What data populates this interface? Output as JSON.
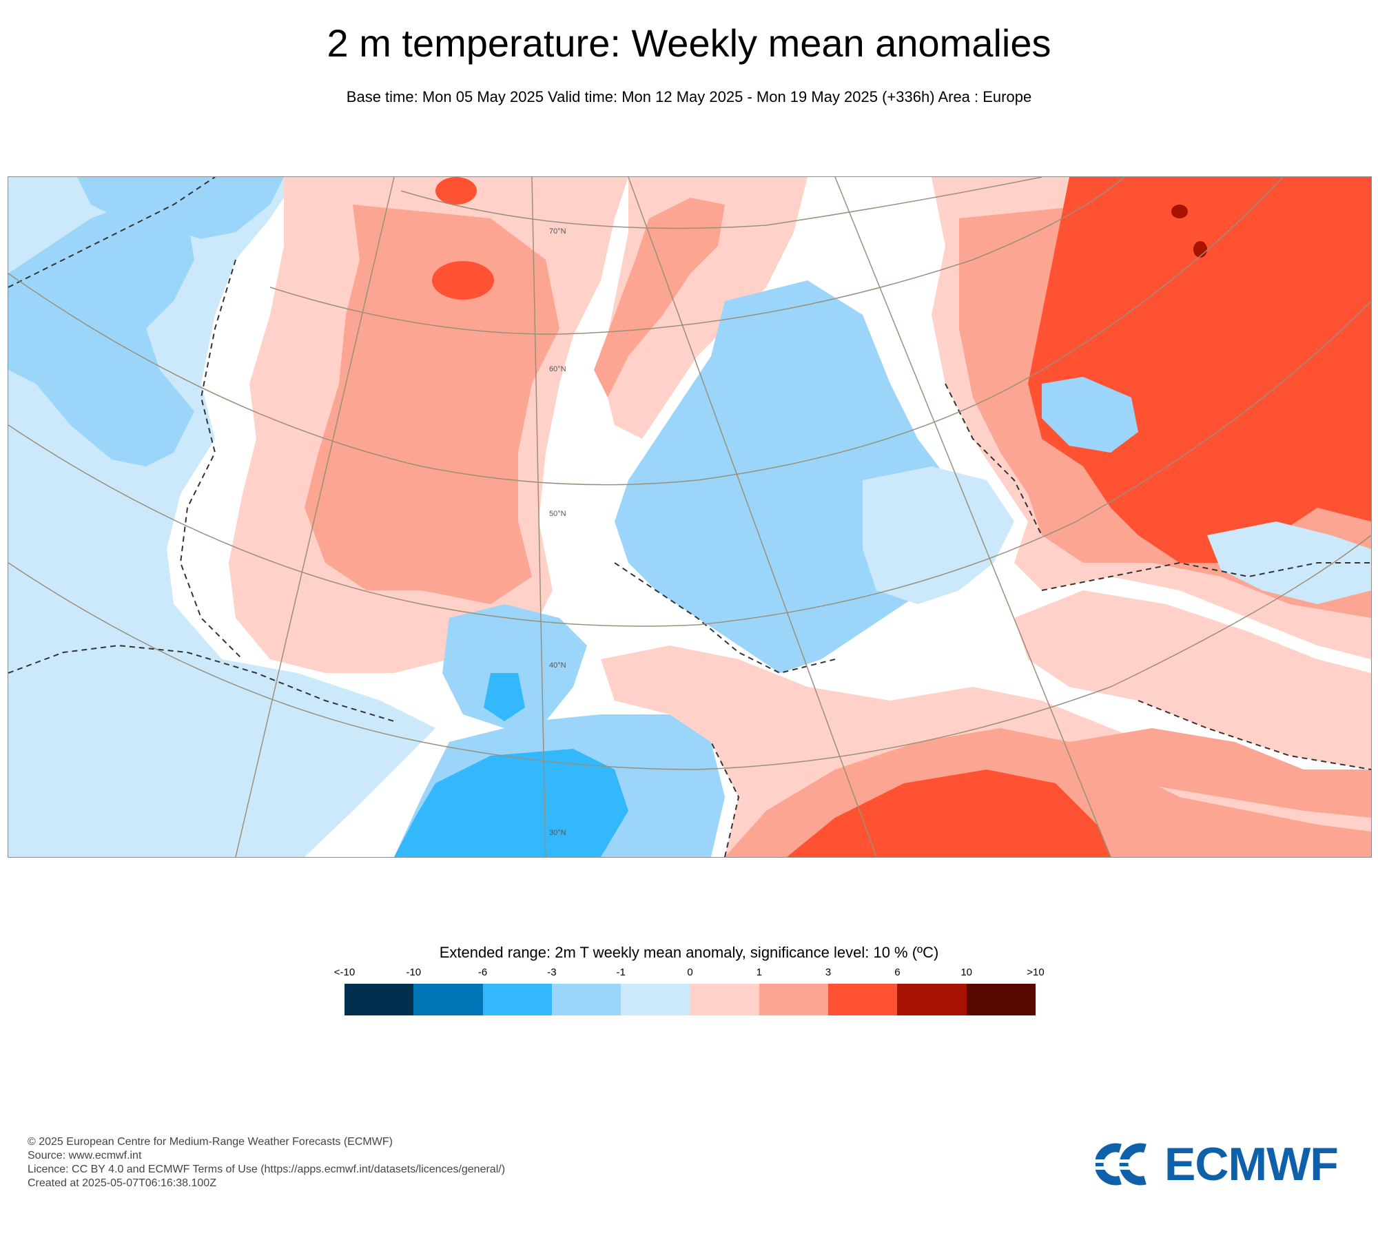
{
  "header": {
    "title": "2 m temperature: Weekly mean anomalies",
    "subtitle": "Base time: Mon 05 May 2025 Valid time: Mon 12 May 2025 - Mon 19 May 2025 (+336h) Area : Europe"
  },
  "map": {
    "latitude_labels": [
      "70°N",
      "60°N",
      "50°N",
      "40°N",
      "30°N"
    ],
    "colors": {
      "ocean_cold": "#cce9fb",
      "land_cold": "#9bd6fa",
      "strong_cold": "#33b8fc",
      "warm_light": "#ffd1c9",
      "warm_mid": "#fca592",
      "warm_strong": "#ff5233",
      "warm_extreme": "#a81200",
      "neutral": "#ffffff"
    }
  },
  "legend": {
    "title": "Extended range: 2m T weekly mean anomaly, significance level: 10 % (ºC)",
    "ticks": [
      "<-10",
      "-10",
      "-6",
      "-3",
      "-1",
      "0",
      "1",
      "3",
      "6",
      "10",
      ">10"
    ],
    "colors": [
      "#00304d",
      "#0075b8",
      "#33b8fc",
      "#9bd6fa",
      "#cce9fb",
      "#ffd1c9",
      "#fca592",
      "#ff5233",
      "#a81200",
      "#570900"
    ]
  },
  "footer": {
    "copyright": "© 2025 European Centre for Medium-Range Weather Forecasts (ECMWF)",
    "source": "Source: www.ecmwf.int",
    "licence": "Licence: CC BY 4.0 and ECMWF Terms of Use (https://apps.ecmwf.int/datasets/licences/general/)",
    "created": "Created at 2025-05-07T06:16:38.100Z"
  },
  "logo": {
    "text": "ECMWF",
    "color": "#0e60a8"
  }
}
